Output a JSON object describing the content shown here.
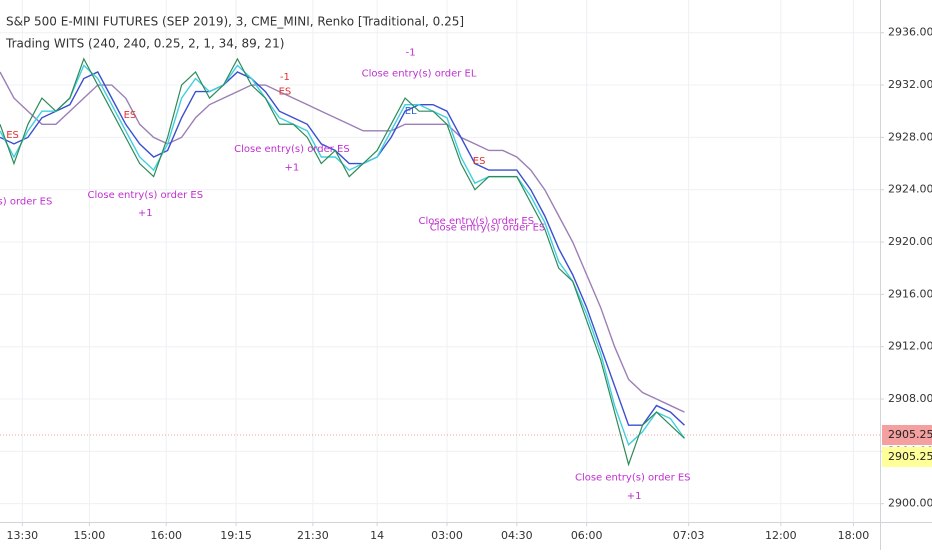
{
  "chart_data": {
    "type": "line",
    "title": "S&P 500 E-MINI FUTURES (SEP 2019), 3, CME_MINI, Renko [Traditional, 0.25]",
    "subtitle": "Trading WITS (240, 240, 0.25, 2, 1, 34, 89, 21)",
    "x": [
      0,
      1,
      2,
      3,
      4,
      5,
      6,
      7,
      8,
      9,
      10,
      11,
      12,
      13,
      14,
      15,
      16,
      17,
      18,
      19,
      20,
      21,
      22,
      23,
      24,
      25,
      26,
      27,
      28,
      29,
      30,
      31,
      32,
      33,
      34,
      35,
      36,
      37,
      38,
      39,
      40,
      41,
      42,
      43,
      44,
      45,
      46,
      47,
      48,
      49
    ],
    "series": [
      {
        "color": "#9b7fb5",
        "values": [
          2933,
          2931,
          2930,
          2929,
          2929,
          2930,
          2931,
          2932,
          2932,
          2931,
          2929,
          2928,
          2927.5,
          2928,
          2929.5,
          2930.5,
          2931,
          2931.5,
          2932,
          2932,
          2931.5,
          2931,
          2930.5,
          2930,
          2929.5,
          2929,
          2928.5,
          2928.5,
          2928.5,
          2929,
          2929,
          2929,
          2929,
          2928,
          2927.5,
          2927,
          2927,
          2926.5,
          2925.5,
          2924,
          2922,
          2920,
          2917.5,
          2915,
          2912,
          2909.5,
          2908.5,
          2908,
          2907.5,
          2907
        ]
      },
      {
        "color": "#3a4fd0",
        "values": [
          2928,
          2927.5,
          2928,
          2929.5,
          2930,
          2930.5,
          2932.5,
          2933,
          2931,
          2929,
          2927.5,
          2926.5,
          2927,
          2929.5,
          2931.5,
          2931.5,
          2932,
          2933,
          2932.5,
          2931.5,
          2930,
          2929.5,
          2929,
          2927.5,
          2927,
          2926,
          2926,
          2926.5,
          2928,
          2930,
          2930.5,
          2930.5,
          2930,
          2928,
          2926,
          2925.5,
          2925.5,
          2925.5,
          2924,
          2922,
          2919.5,
          2917.5,
          2915,
          2912,
          2909,
          2906,
          2906,
          2907.5,
          2907,
          2906
        ]
      },
      {
        "color": "#40d0e0",
        "values": [
          2928.5,
          2926.5,
          2928.5,
          2930,
          2930,
          2931,
          2933.5,
          2932.5,
          2930.5,
          2928.5,
          2926.5,
          2925.5,
          2927.5,
          2931,
          2932.5,
          2931.5,
          2932,
          2933.5,
          2932.5,
          2931,
          2929.5,
          2929,
          2928.5,
          2926.5,
          2926.5,
          2925.5,
          2926,
          2926.5,
          2928.5,
          2930.5,
          2930.5,
          2930,
          2929.5,
          2926.5,
          2924.5,
          2925,
          2925,
          2925,
          2923.5,
          2921.5,
          2918.5,
          2917,
          2914.5,
          2911.5,
          2907.5,
          2904.5,
          2905.5,
          2907,
          2906.5,
          2905
        ]
      },
      {
        "color": "#2e8b57",
        "values": [
          2929,
          2926,
          2929,
          2931,
          2930,
          2931,
          2934,
          2932,
          2930,
          2928,
          2926,
          2925,
          2928,
          2932,
          2933,
          2931,
          2932,
          2934,
          2932,
          2931,
          2929,
          2929,
          2928,
          2926,
          2927,
          2925,
          2926,
          2927,
          2929,
          2931,
          2930,
          2930,
          2929,
          2926,
          2924,
          2925,
          2925,
          2925,
          2923,
          2921,
          2918,
          2917,
          2914,
          2911,
          2907,
          2903,
          2906,
          2907,
          2906,
          2905
        ]
      }
    ],
    "xlim": [
      0,
      63
    ],
    "xticks": [
      {
        "value": 1.6,
        "label": "13:30"
      },
      {
        "value": 6.4,
        "label": "15:00"
      },
      {
        "value": 11.9,
        "label": "16:00"
      },
      {
        "value": 16.9,
        "label": "19:15"
      },
      {
        "value": 22.4,
        "label": "21:30"
      },
      {
        "value": 27,
        "label": "14"
      },
      {
        "value": 32,
        "label": "03:00"
      },
      {
        "value": 37,
        "label": "04:30"
      },
      {
        "value": 42,
        "label": "06:00"
      },
      {
        "value": 49.3,
        "label": "07:03"
      },
      {
        "value": 55.9,
        "label": "12:00"
      },
      {
        "value": 61.1,
        "label": "18:00"
      }
    ],
    "ylim": [
      2898.6,
      2938.5
    ],
    "yticks": [
      {
        "value": 2900,
        "label": "2900.00"
      },
      {
        "value": 2904,
        "label": "2904.00"
      },
      {
        "value": 2908,
        "label": "2908.00"
      },
      {
        "value": 2912,
        "label": "2912.00"
      },
      {
        "value": 2916,
        "label": "2916.00"
      },
      {
        "value": 2920,
        "label": "2920.00"
      },
      {
        "value": 2924,
        "label": "2924.00"
      },
      {
        "value": 2928,
        "label": "2928.00"
      },
      {
        "value": 2932,
        "label": "2932.00"
      },
      {
        "value": 2936,
        "label": "2936.00"
      }
    ],
    "grid": true,
    "price_labels": [
      {
        "value": 2905.25,
        "label": "2905.25",
        "color": "#f4a0a0"
      },
      {
        "value": 2905.25,
        "label": "2905.25",
        "color": "#ffff99"
      }
    ],
    "annotations": [
      {
        "text": "entry(s) order ES",
        "x": 0.7,
        "y": 2923.1,
        "color": "#c030d0"
      },
      {
        "text": "ES",
        "x": 0.9,
        "y": 2928.2,
        "color": "#e03030"
      },
      {
        "text": "Close entry(s) order ES",
        "x": 10.4,
        "y": 2923.6,
        "color": "#c030d0"
      },
      {
        "text": "+1",
        "x": 10.4,
        "y": 2922.2,
        "color": "#c030d0"
      },
      {
        "text": "ES",
        "x": 9.3,
        "y": 2929.7,
        "color": "#e03030"
      },
      {
        "text": "-1",
        "x": 20.4,
        "y": 2932.6,
        "color": "#e03030"
      },
      {
        "text": "ES",
        "x": 20.4,
        "y": 2931.5,
        "color": "#e03030"
      },
      {
        "text": "Close entry(s) order ES",
        "x": 20.9,
        "y": 2927.1,
        "color": "#c030d0"
      },
      {
        "text": "+1",
        "x": 20.9,
        "y": 2925.7,
        "color": "#c030d0"
      },
      {
        "text": "-1",
        "x": 29.4,
        "y": 2934.5,
        "color": "#c030d0"
      },
      {
        "text": "Close entry(s) order EL",
        "x": 30,
        "y": 2932.9,
        "color": "#c030d0"
      },
      {
        "text": "EL",
        "x": 29.4,
        "y": 2930,
        "color": "#3060d0"
      },
      {
        "text": "ES",
        "x": 34.3,
        "y": 2926.2,
        "color": "#e03030"
      },
      {
        "text": "Close entry(s) order ES",
        "x": 34.1,
        "y": 2921.6,
        "color": "#c030d0"
      },
      {
        "text": "Close entry(s) order ES",
        "x": 34.9,
        "y": 2921.1,
        "color": "#c030d0"
      },
      {
        "text": "Close entry(s) order ES",
        "x": 45.3,
        "y": 2902,
        "color": "#c030d0"
      },
      {
        "text": "+1",
        "x": 45.4,
        "y": 2900.6,
        "color": "#c030d0"
      }
    ]
  }
}
